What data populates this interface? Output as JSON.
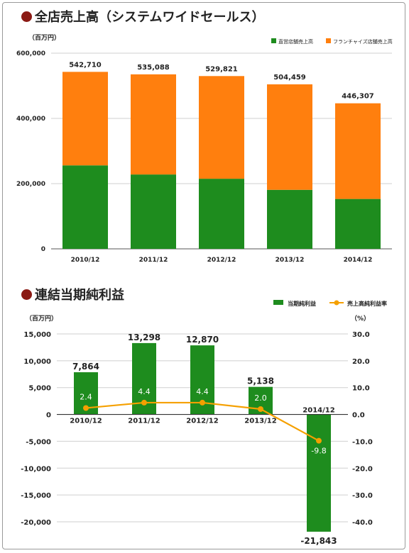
{
  "colors": {
    "direct": "#1e8c1e",
    "franchise": "#ff7f0e",
    "net": "#1e8c1e",
    "margin": "#f5a000",
    "bullet": "#8b1a14"
  },
  "chart_data": [
    {
      "type": "bar",
      "stacked": true,
      "title": "全店売上高（システムワイドセールス）",
      "unit_label": "（百万円）",
      "categories": [
        "2010/12",
        "2011/12",
        "2012/12",
        "2013/12",
        "2014/12"
      ],
      "series": [
        {
          "name": "直営店舗売上高",
          "values": [
            256000,
            228000,
            215000,
            181000,
            153000
          ]
        },
        {
          "name": "フランチャイズ店舗売上高",
          "values": [
            286710,
            307088,
            314821,
            323459,
            293307
          ]
        }
      ],
      "totals": [
        "542,710",
        "535,088",
        "529,821",
        "504,459",
        "446,307"
      ],
      "yticks": [
        "0",
        "200,000",
        "400,000",
        "600,000"
      ],
      "ylim": [
        0,
        600000
      ],
      "legend": "top-right"
    },
    {
      "type": "bar+line",
      "title": "連結当期純利益",
      "unit_left": "（百万円）",
      "unit_right": "（%）",
      "categories": [
        "2010/12",
        "2011/12",
        "2012/12",
        "2013/12",
        "2014/12"
      ],
      "series": [
        {
          "name": "当期純利益",
          "values": [
            7864,
            13298,
            12870,
            5138,
            -21843
          ],
          "labels": [
            "7,864",
            "13,298",
            "12,870",
            "5,138",
            "-21,843"
          ]
        },
        {
          "name": "売上高純利益率",
          "values": [
            2.4,
            4.4,
            4.4,
            2.0,
            -9.8
          ],
          "labels": [
            "2.4",
            "4.4",
            "4.4",
            "2.0",
            "-9.8"
          ]
        }
      ],
      "yticks_left": [
        "15,000",
        "10,000",
        "5,000",
        "0",
        "-5,000",
        "-10,000",
        "-15,000",
        "-20,000"
      ],
      "ylim_left": [
        -20000,
        15000
      ],
      "yticks_right": [
        "30.0",
        "20.0",
        "10.0",
        "0.0",
        "-10.0",
        "-20.0",
        "-30.0",
        "-40.0"
      ],
      "ylim_right": [
        -40,
        30
      ],
      "legend": "top-right"
    }
  ]
}
